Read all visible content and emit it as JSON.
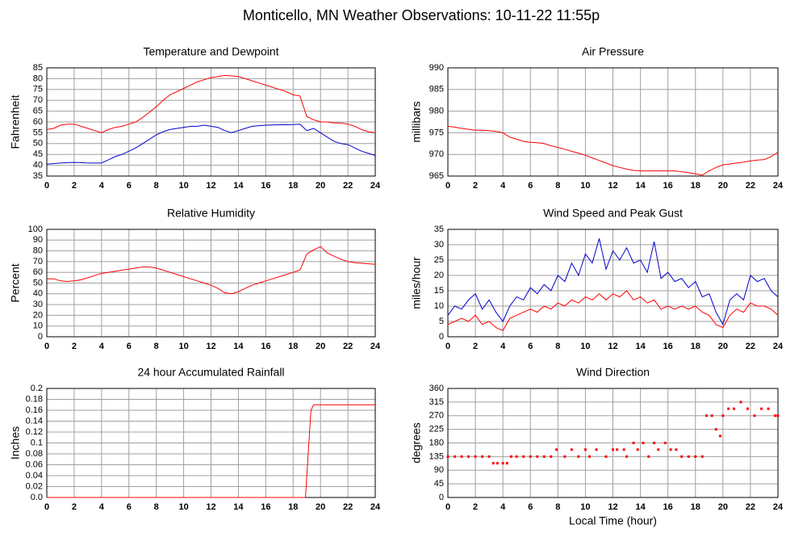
{
  "title": "Monticello, MN Weather Observations: 10-11-22 11:55p",
  "chart_data": [
    {
      "type": "line",
      "title": "Temperature and Dewpoint",
      "ylabel": "Fahrenheit",
      "x": [
        0,
        0.5,
        1,
        1.5,
        2,
        2.5,
        3,
        3.5,
        4,
        4.5,
        5,
        5.5,
        6,
        6.5,
        7,
        7.5,
        8,
        8.5,
        9,
        9.5,
        10,
        10.5,
        11,
        11.5,
        12,
        12.5,
        13,
        13.5,
        14,
        14.5,
        15,
        15.5,
        16,
        16.5,
        17,
        17.5,
        18,
        18.5,
        19,
        19.5,
        20,
        20.5,
        21,
        21.5,
        22,
        22.5,
        23,
        23.5,
        24
      ],
      "series": [
        {
          "color": "#ff0000",
          "values": [
            56.5,
            57,
            58.5,
            59,
            59,
            58,
            57,
            56,
            55,
            56.5,
            57.5,
            58,
            59,
            60,
            62,
            64.5,
            67,
            70,
            72.5,
            74,
            75.5,
            77,
            78.5,
            79.5,
            80.5,
            81,
            81.5,
            81.3,
            81,
            80,
            79,
            78,
            77,
            76,
            75,
            74,
            72.5,
            72,
            62.5,
            61,
            60,
            60,
            59.5,
            59.5,
            59,
            58,
            56.5,
            55.5,
            55
          ]
        },
        {
          "color": "#0000cc",
          "values": [
            40.5,
            40.8,
            41,
            41.2,
            41.3,
            41.2,
            41,
            41,
            41,
            42.5,
            44,
            45,
            46.5,
            48,
            50,
            52,
            54,
            55.5,
            56.5,
            57,
            57.5,
            58,
            58,
            58.5,
            58,
            57.5,
            56,
            55,
            56,
            57,
            58,
            58.3,
            58.5,
            58.6,
            58.7,
            58.7,
            58.8,
            59,
            56,
            57,
            55,
            53,
            51,
            50,
            49.5,
            48,
            46.5,
            45.5,
            44.5
          ]
        }
      ],
      "xlim": [
        0,
        24
      ],
      "xticks": [
        0,
        2,
        4,
        6,
        8,
        10,
        12,
        14,
        16,
        18,
        20,
        22,
        24
      ],
      "ylim": [
        35,
        85
      ],
      "yticks": [
        35,
        40,
        45,
        50,
        55,
        60,
        65,
        70,
        75,
        80,
        85
      ],
      "grid": true
    },
    {
      "type": "line",
      "title": "Air Pressure",
      "ylabel": "millibars",
      "x": [
        0,
        0.5,
        1,
        1.5,
        2,
        2.5,
        3,
        3.5,
        4,
        4.5,
        5,
        5.5,
        6,
        6.5,
        7,
        7.5,
        8,
        8.5,
        9,
        9.5,
        10,
        10.5,
        11,
        11.5,
        12,
        12.5,
        13,
        13.5,
        14,
        14.5,
        15,
        15.5,
        16,
        16.5,
        17,
        17.5,
        18,
        18.5,
        19,
        19.5,
        20,
        20.5,
        21,
        21.5,
        22,
        22.5,
        23,
        23.5,
        24
      ],
      "series": [
        {
          "color": "#ff0000",
          "values": [
            976.5,
            976.3,
            976,
            975.8,
            975.6,
            975.6,
            975.5,
            975.3,
            975,
            974,
            973.5,
            973,
            972.8,
            972.7,
            972.5,
            972,
            971.6,
            971.2,
            970.7,
            970.3,
            969.8,
            969.2,
            968.6,
            968,
            967.4,
            967,
            966.6,
            966.3,
            966.2,
            966.2,
            966.2,
            966.2,
            966.2,
            966.2,
            966,
            965.8,
            965.5,
            965.2,
            966.2,
            967,
            967.6,
            967.8,
            968,
            968.2,
            968.5,
            968.7,
            968.8,
            969.5,
            970.5
          ]
        }
      ],
      "xlim": [
        0,
        24
      ],
      "xticks": [
        0,
        2,
        4,
        6,
        8,
        10,
        12,
        14,
        16,
        18,
        20,
        22,
        24
      ],
      "ylim": [
        965,
        990
      ],
      "yticks": [
        965,
        970,
        975,
        980,
        985,
        990
      ],
      "grid": true
    },
    {
      "type": "line",
      "title": "Relative Humidity",
      "ylabel": "Percent",
      "x": [
        0,
        0.5,
        1,
        1.5,
        2,
        2.5,
        3,
        3.5,
        4,
        4.5,
        5,
        5.5,
        6,
        6.5,
        7,
        7.5,
        8,
        8.5,
        9,
        9.5,
        10,
        10.5,
        11,
        11.5,
        12,
        12.5,
        13,
        13.5,
        14,
        14.5,
        15,
        15.5,
        16,
        16.5,
        17,
        17.5,
        18,
        18.5,
        19,
        19.5,
        20,
        20.5,
        21,
        21.5,
        22,
        22.5,
        23,
        23.5,
        24
      ],
      "series": [
        {
          "color": "#ff0000",
          "values": [
            54,
            54,
            52,
            51.5,
            52,
            53,
            55,
            57,
            59,
            60,
            61,
            62,
            63,
            64,
            65,
            65,
            64,
            62,
            60,
            58,
            56,
            54,
            52,
            50,
            48,
            45,
            41,
            40,
            42,
            45,
            48,
            50,
            52,
            54,
            56,
            58,
            60,
            62,
            77,
            81,
            84,
            78,
            75,
            72,
            70,
            69,
            68.5,
            68,
            67.5
          ]
        }
      ],
      "xlim": [
        0,
        24
      ],
      "xticks": [
        0,
        2,
        4,
        6,
        8,
        10,
        12,
        14,
        16,
        18,
        20,
        22,
        24
      ],
      "ylim": [
        0,
        100
      ],
      "yticks": [
        0,
        10,
        20,
        30,
        40,
        50,
        60,
        70,
        80,
        90,
        100
      ],
      "grid": true
    },
    {
      "type": "line",
      "title": "Wind Speed and Peak Gust",
      "ylabel": "miles/hour",
      "x": [
        0,
        0.5,
        1,
        1.5,
        2,
        2.5,
        3,
        3.5,
        4,
        4.5,
        5,
        5.5,
        6,
        6.5,
        7,
        7.5,
        8,
        8.5,
        9,
        9.5,
        10,
        10.5,
        11,
        11.5,
        12,
        12.5,
        13,
        13.5,
        14,
        14.5,
        15,
        15.5,
        16,
        16.5,
        17,
        17.5,
        18,
        18.5,
        19,
        19.5,
        20,
        20.5,
        21,
        21.5,
        22,
        22.5,
        23,
        23.5,
        24
      ],
      "series": [
        {
          "color": "#0000cc",
          "values": [
            7,
            10,
            9,
            12,
            14,
            9,
            12,
            8,
            5,
            10,
            13,
            12,
            16,
            14,
            17,
            15,
            20,
            18,
            24,
            20,
            27,
            24,
            32,
            22,
            28,
            25,
            29,
            24,
            25,
            21,
            31,
            19,
            21,
            18,
            19,
            16,
            18,
            13,
            14,
            8,
            4,
            12,
            14,
            12,
            20,
            18,
            19,
            15,
            13
          ]
        },
        {
          "color": "#ff0000",
          "values": [
            4,
            5,
            6,
            5,
            7,
            4,
            5,
            3,
            2,
            6,
            7,
            8,
            9,
            8,
            10,
            9,
            11,
            10,
            12,
            11,
            13,
            12,
            14,
            12,
            14,
            13,
            15,
            12,
            13,
            11,
            12,
            9,
            10,
            9,
            10,
            9,
            10,
            8,
            7,
            4,
            3,
            7,
            9,
            8,
            11,
            10,
            10,
            9,
            7
          ]
        }
      ],
      "xlim": [
        0,
        24
      ],
      "xticks": [
        0,
        2,
        4,
        6,
        8,
        10,
        12,
        14,
        16,
        18,
        20,
        22,
        24
      ],
      "ylim": [
        0,
        35
      ],
      "yticks": [
        0,
        5,
        10,
        15,
        20,
        25,
        30,
        35
      ],
      "grid": true
    },
    {
      "type": "line",
      "title": "24 hour Accumulated Rainfall",
      "ylabel": "Inches",
      "x": [
        0,
        18.9,
        19.1,
        19.3,
        19.5,
        24
      ],
      "series": [
        {
          "color": "#ff0000",
          "values": [
            0,
            0,
            0.08,
            0.16,
            0.17,
            0.17
          ]
        }
      ],
      "xlim": [
        0,
        24
      ],
      "xticks": [
        0,
        2,
        4,
        6,
        8,
        10,
        12,
        14,
        16,
        18,
        20,
        22,
        24
      ],
      "ylim": [
        0,
        0.2
      ],
      "yticks": [
        {
          "value": 0,
          "label": "0.0"
        },
        0.02,
        0.04,
        0.06,
        0.08,
        0.1,
        0.12,
        0.14,
        0.16,
        0.18,
        0.2
      ],
      "grid": true
    },
    {
      "type": "scatter",
      "title": "Wind Direction",
      "ylabel": "degrees",
      "xlabel": "Local Time (hour)",
      "x": [
        0,
        0.5,
        1,
        1.5,
        2,
        2.5,
        3,
        3.3,
        3.6,
        4,
        4.3,
        4.6,
        5,
        5.5,
        6,
        6.5,
        7,
        7.5,
        7.9,
        8.5,
        9,
        9.5,
        10,
        10.3,
        10.8,
        11.5,
        12,
        12.3,
        12.8,
        13,
        13.5,
        13.8,
        14.2,
        14.6,
        15,
        15.3,
        15.8,
        16.2,
        16.6,
        17,
        17.5,
        18,
        18.5,
        18.8,
        19.2,
        19.5,
        19.8,
        20,
        20.4,
        20.8,
        21.3,
        21.8,
        22.3,
        22.8,
        23.3,
        23.8,
        24
      ],
      "series": [
        {
          "color": "#ff0000",
          "values": [
            135,
            135,
            135,
            135,
            135,
            135,
            135,
            113,
            113,
            113,
            113,
            135,
            135,
            135,
            135,
            135,
            135,
            135,
            158,
            135,
            158,
            135,
            158,
            135,
            158,
            135,
            158,
            158,
            158,
            135,
            180,
            158,
            180,
            135,
            180,
            158,
            180,
            158,
            158,
            135,
            135,
            135,
            135,
            270,
            270,
            225,
            203,
            270,
            293,
            293,
            315,
            293,
            270,
            293,
            293,
            270,
            270
          ]
        }
      ],
      "xlim": [
        0,
        24
      ],
      "xticks": [
        0,
        2,
        4,
        6,
        8,
        10,
        12,
        14,
        16,
        18,
        20,
        22,
        24
      ],
      "ylim": [
        0,
        360
      ],
      "yticks": [
        0,
        45,
        90,
        135,
        180,
        225,
        270,
        315,
        360
      ],
      "grid": true
    }
  ]
}
